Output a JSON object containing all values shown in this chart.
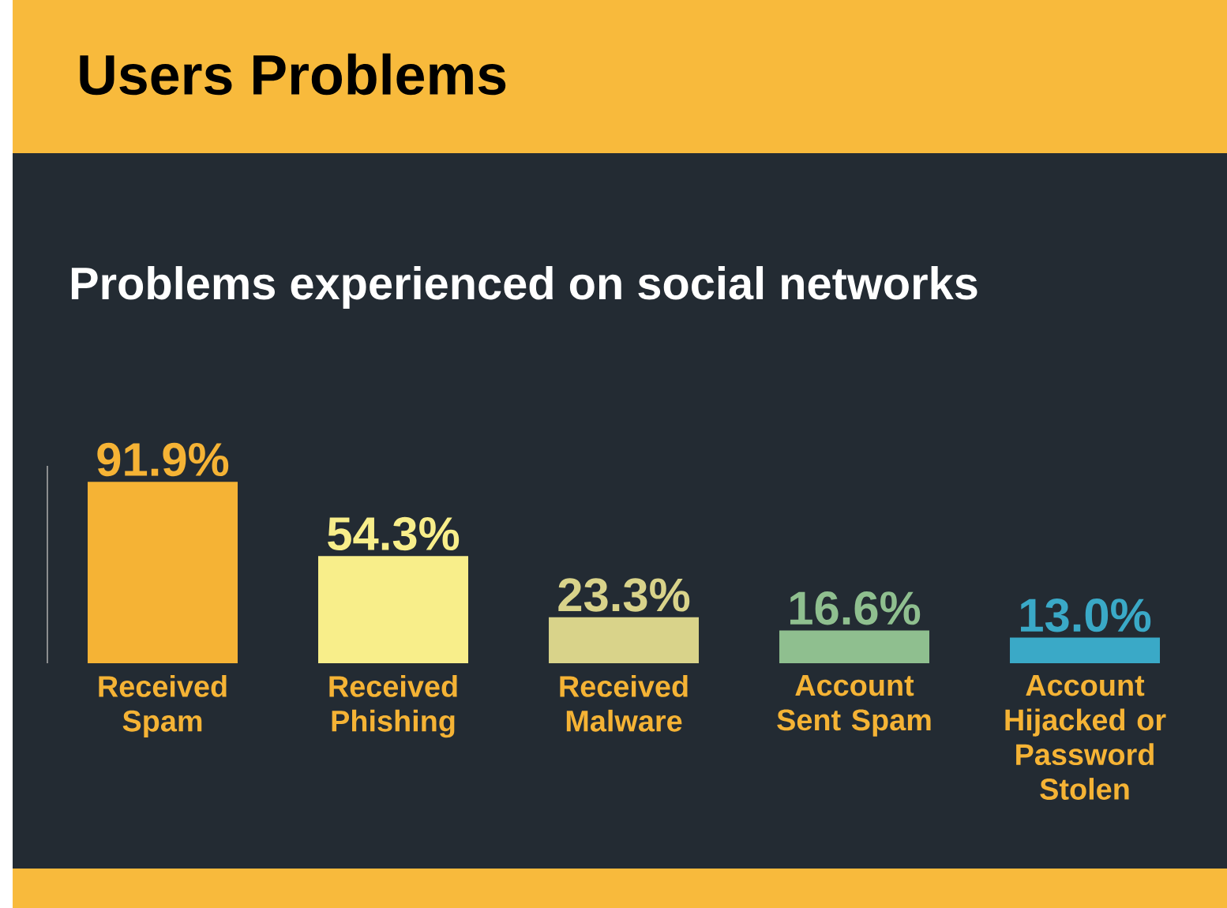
{
  "chart_data": {
    "type": "bar",
    "title": "Users Problems",
    "subtitle": "Problems experienced on social networks",
    "categories": [
      "Received Spam",
      "Received Phishing",
      "Received Malware",
      "Account Sent Spam",
      "Account Hijacked or Password Stolen"
    ],
    "values": [
      91.9,
      54.3,
      23.3,
      16.6,
      13.0
    ],
    "colors": [
      "#f5b335",
      "#f8ee8a",
      "#d9d38a",
      "#8fbf8f",
      "#3aa9c7"
    ],
    "value_labels": [
      "91.9%",
      "54.3%",
      "23.3%",
      "16.6%",
      "13.0%"
    ],
    "ylim": [
      0,
      100
    ]
  }
}
